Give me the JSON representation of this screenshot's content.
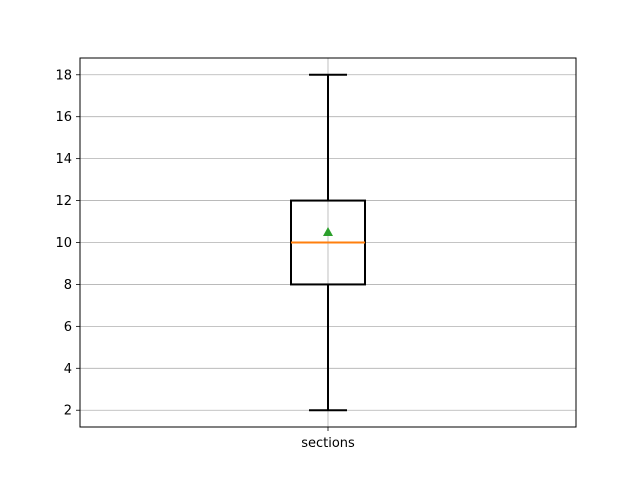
{
  "chart_data": {
    "type": "box",
    "title": "",
    "xlabel": "",
    "ylabel": "",
    "categories": [
      "sections"
    ],
    "ylim": [
      1.2,
      18.8
    ],
    "yticks": [
      2,
      4,
      6,
      8,
      10,
      12,
      14,
      16,
      18
    ],
    "grid": true,
    "boxes": [
      {
        "label": "sections",
        "whisker_low": 2,
        "q1": 8,
        "median": 10,
        "q3": 12,
        "whisker_high": 18,
        "mean": 10.5
      }
    ],
    "colors": {
      "box": "#000000",
      "median": "#ff7f0e",
      "mean_marker": "#2ca02c",
      "grid": "#b0b0b0"
    }
  }
}
